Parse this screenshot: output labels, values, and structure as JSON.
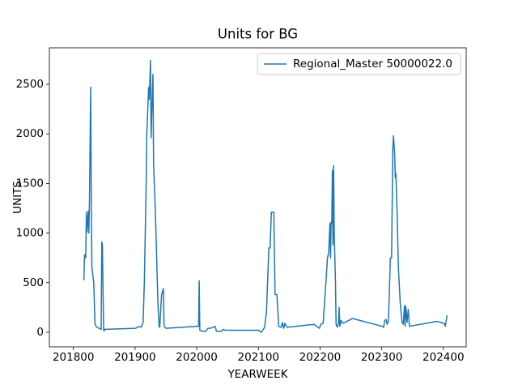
{
  "chart_data": {
    "type": "line",
    "title": "Units for BG",
    "x_label": "YEARWEEK",
    "y_label": "UNITS",
    "x": [
      201816,
      201817,
      201818,
      201820,
      201821,
      201822,
      201824,
      201825,
      201826,
      201828,
      201829,
      201830,
      201833,
      201835,
      201838,
      201842,
      201845,
      201846,
      201847,
      201849,
      201850,
      201851,
      201901,
      201906,
      201910,
      201913,
      201915,
      201918,
      201919,
      201922,
      201923,
      201925,
      201926,
      201927,
      201929,
      201930,
      201933,
      201937,
      201939,
      201940,
      201943,
      201946,
      201947,
      201950,
      202001,
      202003,
      202004,
      202005,
      202010,
      202015,
      202018,
      202022,
      202026,
      202030,
      202032,
      202040,
      202043,
      202046,
      202098,
      202101,
      202104,
      202106,
      202110,
      202113,
      202117,
      202119,
      202121,
      202125,
      202127,
      202130,
      202133,
      202137,
      202139,
      202141,
      202143,
      202147,
      202190,
      202199,
      202201,
      202205,
      202210,
      202212,
      202214,
      202216,
      202217,
      202218,
      202219,
      202220,
      202221,
      202222,
      202223,
      202225,
      202226,
      202228,
      202230,
      202231,
      202232,
      202234,
      202237,
      202250,
      202252,
      202301,
      202303,
      202305,
      202307,
      202309,
      202311,
      202314,
      202316,
      202318,
      202319,
      202321,
      202322,
      202323,
      202325,
      202327,
      202330,
      202333,
      202335,
      202337,
      202338,
      202339,
      202340,
      202341,
      202343,
      202345,
      202390,
      202401,
      202403,
      202406
    ],
    "series": [
      {
        "name": "Regional_Master 50000022.0",
        "color": "#1f77b4",
        "values": [
          530,
          530,
          780,
          750,
          1210,
          1010,
          1220,
          1000,
          1320,
          2470,
          1300,
          650,
          500,
          80,
          50,
          40,
          30,
          910,
          880,
          20,
          15,
          30,
          40,
          60,
          50,
          100,
          500,
          1500,
          2000,
          2470,
          2350,
          2740,
          1960,
          2200,
          2600,
          1700,
          1200,
          300,
          60,
          50,
          380,
          440,
          60,
          40,
          60,
          60,
          520,
          20,
          10,
          10,
          40,
          40,
          50,
          60,
          10,
          10,
          30,
          20,
          20,
          20,
          0,
          10,
          50,
          200,
          850,
          850,
          1210,
          1210,
          380,
          380,
          60,
          50,
          100,
          40,
          90,
          50,
          80,
          40,
          80,
          90,
          550,
          750,
          800,
          1100,
          750,
          1110,
          1100,
          1630,
          880,
          1680,
          1000,
          500,
          80,
          50,
          100,
          250,
          60,
          120,
          90,
          130,
          140,
          60,
          50,
          120,
          130,
          80,
          120,
          750,
          750,
          1850,
          1980,
          1800,
          1560,
          1600,
          1200,
          650,
          300,
          100,
          80,
          270,
          60,
          260,
          200,
          100,
          230,
          60,
          110,
          90,
          60,
          170
        ]
      }
    ],
    "xlim": [
      201761,
      202437
    ],
    "ylim": [
      -147,
      2868
    ],
    "xticks": [
      201800,
      201900,
      202000,
      202100,
      202200,
      202300,
      202400
    ],
    "yticks": [
      0,
      500,
      1000,
      1500,
      2000,
      2500
    ],
    "legend": "upper right"
  }
}
